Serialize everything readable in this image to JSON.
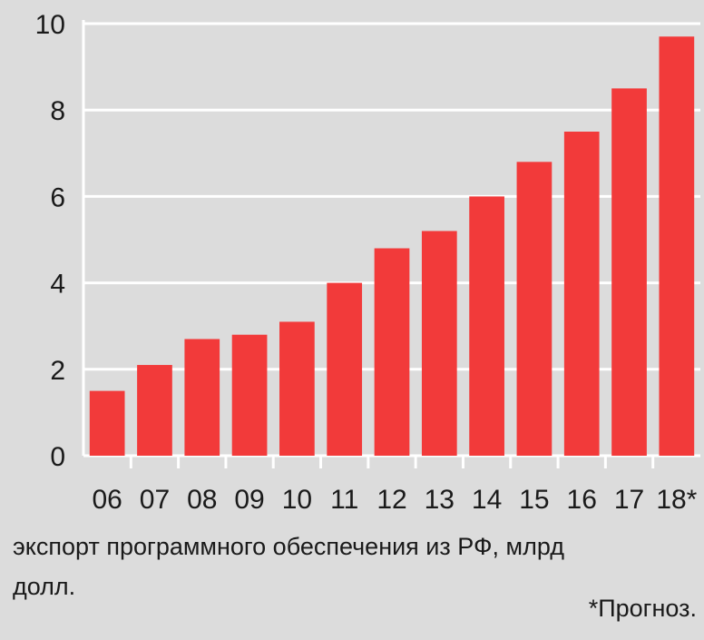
{
  "chart_data": {
    "type": "bar",
    "categories": [
      "06",
      "07",
      "08",
      "09",
      "10",
      "11",
      "12",
      "13",
      "14",
      "15",
      "16",
      "17",
      "18*"
    ],
    "values": [
      1.5,
      2.1,
      2.7,
      2.8,
      3.1,
      4.0,
      4.8,
      5.2,
      6.0,
      6.8,
      7.5,
      8.5,
      9.7
    ],
    "yticks": [
      "0",
      "2",
      "4",
      "6",
      "8",
      "10"
    ],
    "ylim": [
      0,
      10
    ],
    "grid": true,
    "bar_color": "#f23a3a",
    "axis_color": "#ffffff",
    "title": "экспорт программного обеспечения из РФ, млрд долл.",
    "footnote": "*Прогноз."
  }
}
